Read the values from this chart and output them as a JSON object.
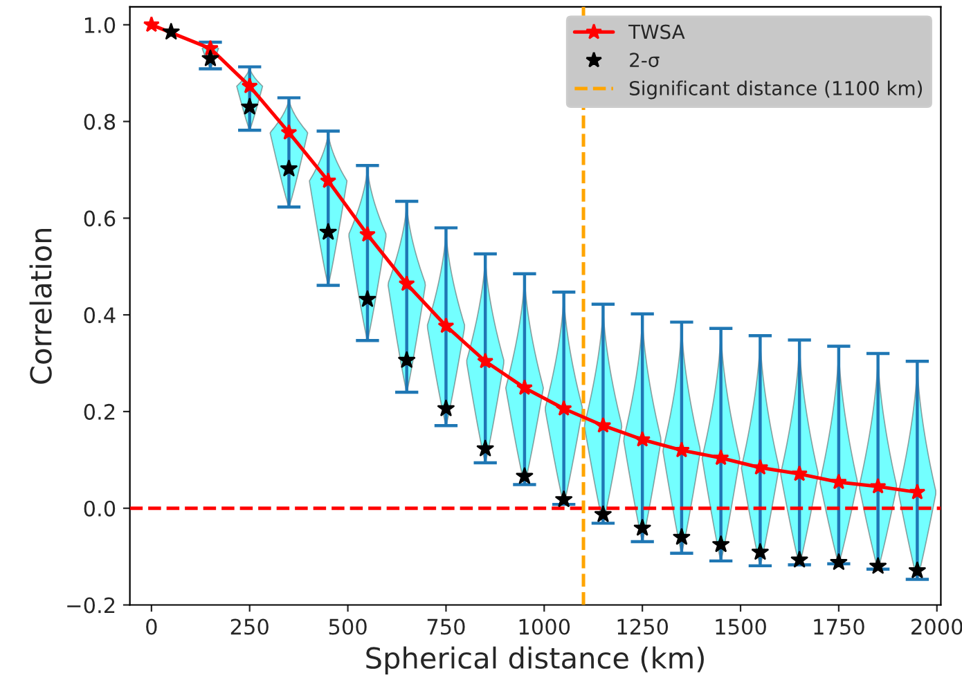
{
  "chart_data": {
    "type": "line",
    "xlabel": "Spherical distance (km)",
    "ylabel": "Correlation",
    "xlim": [
      -55,
      2010
    ],
    "xticks": [
      0,
      250,
      500,
      750,
      1000,
      1250,
      1500,
      1750,
      2000
    ],
    "ylim": [
      -0.2,
      1.037
    ],
    "yticks": [
      {
        "value": -0.2,
        "label": "−0.2"
      },
      {
        "value": 0.0,
        "label": "0.0"
      },
      {
        "value": 0.2,
        "label": "0.2"
      },
      {
        "value": 0.4,
        "label": "0.4"
      },
      {
        "value": 0.6,
        "label": "0.6"
      },
      {
        "value": 0.8,
        "label": "0.8"
      },
      {
        "value": 1.0,
        "label": "1.0"
      }
    ],
    "grid": false,
    "legend": "top right",
    "series": [
      {
        "name": "TWSA",
        "color": "#ff0000",
        "marker": "star",
        "x": [
          0,
          150,
          250,
          350,
          450,
          550,
          650,
          750,
          850,
          950,
          1050,
          1150,
          1250,
          1350,
          1450,
          1550,
          1650,
          1750,
          1850,
          1950
        ],
        "values": [
          1.0,
          0.951,
          0.873,
          0.777,
          0.677,
          0.566,
          0.464,
          0.377,
          0.304,
          0.249,
          0.206,
          0.171,
          0.142,
          0.12,
          0.104,
          0.084,
          0.071,
          0.054,
          0.045,
          0.033
        ],
        "errors": [
          null,
          [
            0.909,
            0.964
          ],
          [
            0.782,
            0.913
          ],
          [
            0.623,
            0.849
          ],
          [
            0.461,
            0.78
          ],
          [
            0.347,
            0.709
          ],
          [
            0.24,
            0.635
          ],
          [
            0.171,
            0.58
          ],
          [
            0.094,
            0.526
          ],
          [
            0.049,
            0.485
          ],
          [
            0.008,
            0.447
          ],
          [
            -0.031,
            0.422
          ],
          [
            -0.069,
            0.402
          ],
          [
            -0.093,
            0.385
          ],
          [
            -0.109,
            0.372
          ],
          [
            -0.119,
            0.357
          ],
          [
            -0.117,
            0.348
          ],
          [
            -0.115,
            0.335
          ],
          [
            -0.126,
            0.32
          ],
          [
            -0.147,
            0.304
          ]
        ]
      },
      {
        "type": "scatter",
        "name": "2-σ",
        "color": "#000000",
        "marker": "star",
        "x": [
          50,
          150,
          250,
          350,
          450,
          550,
          650,
          750,
          850,
          950,
          1050,
          1150,
          1250,
          1350,
          1450,
          1550,
          1650,
          1750,
          1850,
          1950
        ],
        "values": [
          0.985,
          0.93,
          0.83,
          0.702,
          0.571,
          0.432,
          0.306,
          0.206,
          0.123,
          0.066,
          0.018,
          -0.013,
          -0.041,
          -0.06,
          -0.075,
          -0.091,
          -0.107,
          -0.112,
          -0.12,
          -0.129
        ]
      }
    ],
    "ref_lines": [
      {
        "axis": "y",
        "value": 0,
        "color": "#ff0000",
        "line_style": "dashed"
      },
      {
        "axis": "x",
        "value": 1100,
        "label": "Significant distance (1100 km)",
        "color": "#ffa500",
        "line_style": "dashed"
      }
    ]
  }
}
